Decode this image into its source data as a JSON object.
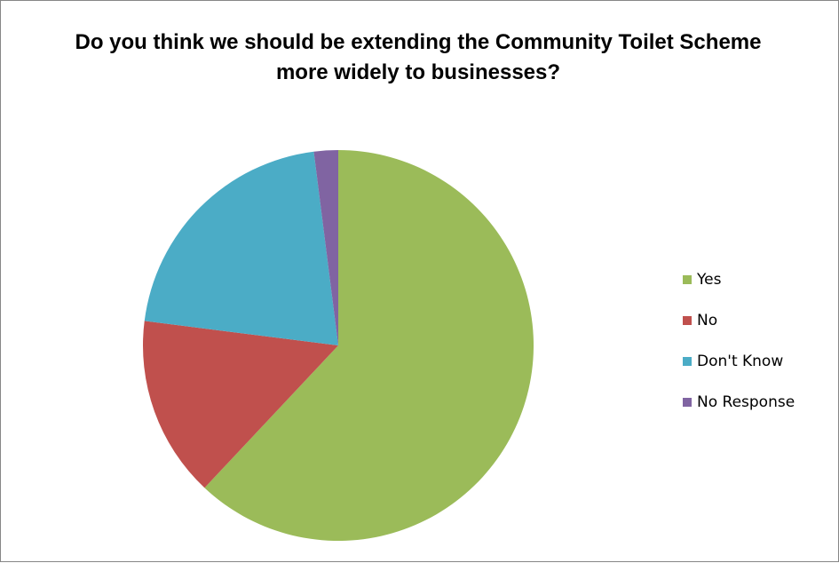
{
  "chart_data": {
    "type": "pie",
    "title": "Do you think we should be extending the Community Toilet Scheme more widely to businesses?",
    "categories": [
      "Yes",
      "No",
      "Don't Know",
      "No Response"
    ],
    "values": [
      62,
      15,
      21,
      2
    ],
    "colors": [
      "#9BBB59",
      "#C0504D",
      "#4BACC6",
      "#8064A2"
    ],
    "legend_position": "right"
  }
}
